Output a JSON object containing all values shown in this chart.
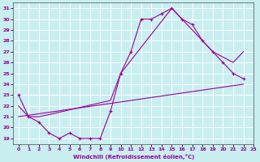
{
  "xlabel": "Windchill (Refroidissement éolien,°C)",
  "bg_color": "#c8eef0",
  "line_color": "#990099",
  "grid_color": "#ffffff",
  "xlim": [
    -0.5,
    23
  ],
  "ylim": [
    18.5,
    31.5
  ],
  "xticks": [
    0,
    1,
    2,
    3,
    4,
    5,
    6,
    7,
    8,
    9,
    10,
    11,
    12,
    13,
    14,
    15,
    16,
    17,
    18,
    19,
    20,
    21,
    22,
    23
  ],
  "yticks": [
    19,
    20,
    21,
    22,
    23,
    24,
    25,
    26,
    27,
    28,
    29,
    30,
    31
  ],
  "series_main": [
    [
      0,
      23.0
    ],
    [
      1,
      21.0
    ],
    [
      2,
      20.5
    ],
    [
      3,
      19.5
    ],
    [
      4,
      19.0
    ],
    [
      5,
      19.5
    ],
    [
      6,
      19.0
    ],
    [
      7,
      19.0
    ],
    [
      8,
      19.0
    ],
    [
      9,
      21.5
    ],
    [
      10,
      25.0
    ],
    [
      11,
      27.0
    ],
    [
      12,
      30.0
    ],
    [
      13,
      30.0
    ],
    [
      14,
      30.5
    ],
    [
      15,
      31.0
    ],
    [
      16,
      30.0
    ],
    [
      17,
      29.5
    ],
    [
      18,
      28.0
    ],
    [
      19,
      27.0
    ],
    [
      20,
      26.0
    ],
    [
      21,
      25.0
    ],
    [
      22,
      24.5
    ]
  ],
  "series_mid": [
    [
      0,
      22.0
    ],
    [
      1,
      21.0
    ],
    [
      2,
      21.0
    ],
    [
      3,
      21.2
    ],
    [
      9,
      22.5
    ],
    [
      10,
      25.0
    ],
    [
      15,
      31.0
    ],
    [
      18,
      28.0
    ],
    [
      19,
      27.0
    ],
    [
      20,
      26.5
    ],
    [
      21,
      26.0
    ],
    [
      22,
      27.0
    ]
  ],
  "series_low": [
    [
      0,
      21.0
    ],
    [
      22,
      24.0
    ]
  ]
}
